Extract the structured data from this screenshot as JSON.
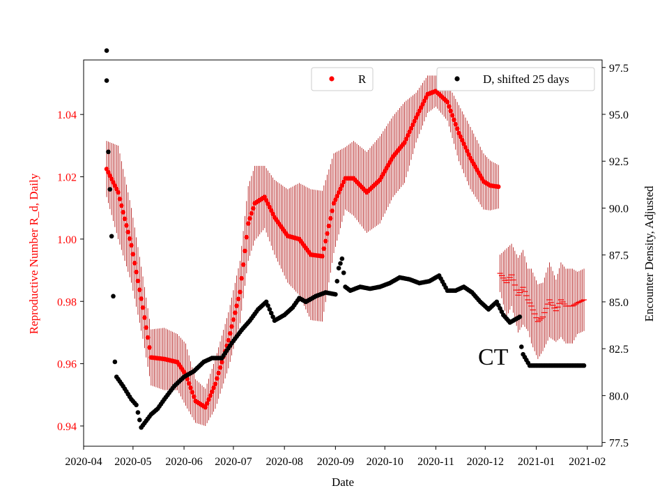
{
  "chart_data": {
    "type": "scatter",
    "xlabel": "Date",
    "ylabel_left": "Reproductive Number R_d, Daily",
    "ylabel_right": "Encounter Density, Adjusted",
    "xlim": [
      "2020-04-01",
      "2021-02-10"
    ],
    "ylim_left": [
      0.9335,
      1.0575
    ],
    "ylim_right": [
      77.3,
      97.9
    ],
    "x_ticks": [
      "2020-04",
      "2020-05",
      "2020-06",
      "2020-07",
      "2020-08",
      "2020-09",
      "2020-10",
      "2020-11",
      "2020-12",
      "2021-01",
      "2021-02"
    ],
    "y_ticks_left": [
      "0.94",
      "0.96",
      "0.98",
      "1.00",
      "1.02",
      "1.04"
    ],
    "y_ticks_right": [
      "77.5",
      "80.0",
      "82.5",
      "85.0",
      "87.5",
      "90.0",
      "92.5",
      "95.0",
      "97.5"
    ],
    "annotation": "CT",
    "legend_left": "R",
    "legend_right": "D, shifted 25 days",
    "colors": {
      "r_series": "#ff0000",
      "r_error": "#aa0000",
      "d_series": "#000000",
      "left_axis": "#ff0000"
    },
    "series": [
      {
        "name": "R",
        "axis": "left",
        "x": [
          "2020-04-15",
          "2020-04-22",
          "2020-04-30",
          "2020-05-07",
          "2020-05-12",
          "2020-05-20",
          "2020-05-28",
          "2020-06-02",
          "2020-06-08",
          "2020-06-14",
          "2020-06-20",
          "2020-06-28",
          "2020-07-05",
          "2020-07-10",
          "2020-07-14",
          "2020-07-20",
          "2020-07-26",
          "2020-08-03",
          "2020-08-10",
          "2020-08-17",
          "2020-08-24",
          "2020-08-31",
          "2020-09-07",
          "2020-09-12",
          "2020-09-20",
          "2020-09-28",
          "2020-10-06",
          "2020-10-13",
          "2020-10-20",
          "2020-10-27",
          "2020-11-01",
          "2020-11-08",
          "2020-11-15",
          "2020-11-22",
          "2020-11-30",
          "2020-12-04",
          "2020-12-09"
        ],
        "y": [
          1.0225,
          1.015,
          0.998,
          0.978,
          0.962,
          0.9615,
          0.9605,
          0.9565,
          0.948,
          0.946,
          0.9535,
          0.9675,
          0.983,
          1.005,
          1.0115,
          1.0135,
          1.007,
          1.001,
          1.0,
          0.995,
          0.9945,
          1.0115,
          1.0195,
          1.0195,
          1.015,
          1.019,
          1.0265,
          1.031,
          1.039,
          1.0465,
          1.0475,
          1.044,
          1.034,
          1.026,
          1.0185,
          1.0172,
          1.0168
        ],
        "err": [
          0.009,
          0.015,
          0.012,
          0.01,
          0.009,
          0.01,
          0.009,
          0.01,
          0.007,
          0.006,
          0.008,
          0.009,
          0.01,
          0.012,
          0.012,
          0.01,
          0.012,
          0.015,
          0.018,
          0.021,
          0.021,
          0.016,
          0.01,
          0.012,
          0.013,
          0.014,
          0.013,
          0.013,
          0.008,
          0.006,
          0.005,
          0.006,
          0.009,
          0.01,
          0.009,
          0.008,
          0.007
        ],
        "tail_x": [
          "2020-12-10",
          "2020-12-14",
          "2020-12-17",
          "2020-12-21",
          "2020-12-24",
          "2020-12-27",
          "2020-12-29",
          "2021-01-02",
          "2021-01-05",
          "2021-01-09",
          "2021-01-13",
          "2021-01-16",
          "2021-01-19",
          "2021-01-23",
          "2021-01-26",
          "2021-01-30"
        ],
        "tail_y": [
          0.989,
          0.986,
          0.9885,
          0.982,
          0.9845,
          0.9805,
          0.9785,
          0.9735,
          0.975,
          0.9805,
          0.977,
          0.9805,
          0.9785,
          0.9785,
          0.9795,
          0.9805
        ],
        "tail_err": [
          0.006,
          0.011,
          0.01,
          0.012,
          0.012,
          0.01,
          0.012,
          0.012,
          0.011,
          0.012,
          0.01,
          0.012,
          0.012,
          0.012,
          0.01,
          0.01
        ]
      },
      {
        "name": "D, shifted 25 days",
        "axis": "right",
        "x": [
          "2020-04-15",
          "2020-04-15",
          "2020-04-16",
          "2020-04-17",
          "2020-04-18",
          "2020-04-19",
          "2020-04-20",
          "2020-04-21",
          "2020-04-25",
          "2020-04-30",
          "2020-05-03",
          "2020-05-06",
          "2020-05-12",
          "2020-05-16",
          "2020-05-20",
          "2020-05-26",
          "2020-06-01",
          "2020-06-07",
          "2020-06-13",
          "2020-06-18",
          "2020-06-24",
          "2020-06-30",
          "2020-07-06",
          "2020-07-11",
          "2020-07-16",
          "2020-07-21",
          "2020-07-26",
          "2020-08-01",
          "2020-08-06",
          "2020-08-10",
          "2020-08-14",
          "2020-08-20",
          "2020-08-26",
          "2020-09-01",
          "2020-09-03",
          "2020-09-05",
          "2020-09-07",
          "2020-09-10",
          "2020-09-16",
          "2020-09-22",
          "2020-09-28",
          "2020-10-04",
          "2020-10-10",
          "2020-10-16",
          "2020-10-22",
          "2020-10-28",
          "2020-11-03",
          "2020-11-08",
          "2020-11-13",
          "2020-11-18",
          "2020-11-23",
          "2020-11-28",
          "2020-12-03",
          "2020-12-08",
          "2020-12-12",
          "2020-12-16",
          "2020-12-20",
          "2020-12-22",
          "2020-12-23",
          "2020-12-24",
          "2020-12-26",
          "2020-12-28",
          "2021-01-03",
          "2021-01-10",
          "2021-01-17",
          "2021-01-24",
          "2021-01-30"
        ],
        "y": [
          98.4,
          96.8,
          93.0,
          91.0,
          88.5,
          85.3,
          81.8,
          81.0,
          80.5,
          79.8,
          79.5,
          78.3,
          79.0,
          79.3,
          79.8,
          80.5,
          81.0,
          81.3,
          81.8,
          82.0,
          82.0,
          82.8,
          83.5,
          84.0,
          84.6,
          85.0,
          84.0,
          84.3,
          84.7,
          85.2,
          85.0,
          85.3,
          85.5,
          85.4,
          86.8,
          87.3,
          85.8,
          85.6,
          85.8,
          85.7,
          85.8,
          86.0,
          86.3,
          86.2,
          86.0,
          86.1,
          86.4,
          85.6,
          85.6,
          85.8,
          85.5,
          85.0,
          84.6,
          85.0,
          84.3,
          83.9,
          84.1,
          84.2,
          82.6,
          82.2,
          81.9,
          81.6,
          81.6,
          81.6,
          81.6,
          81.6,
          81.6
        ]
      }
    ]
  }
}
